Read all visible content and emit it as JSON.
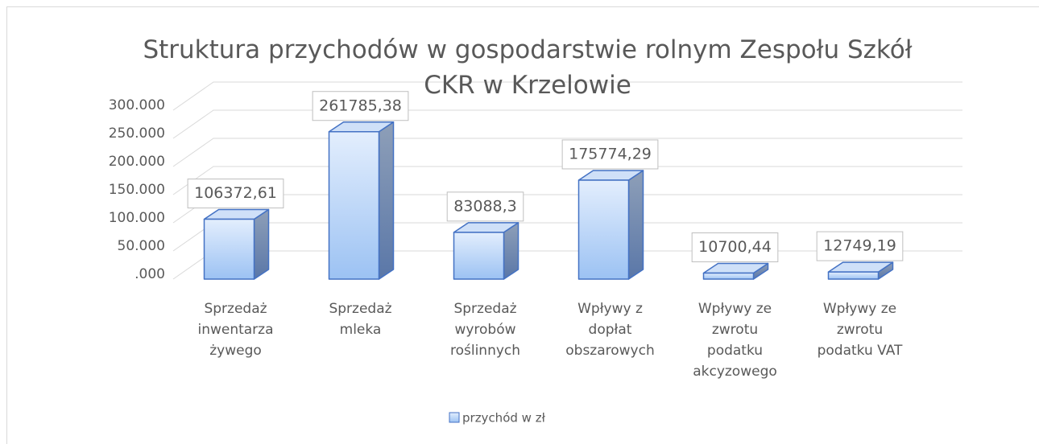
{
  "chart_data": {
    "type": "bar3d",
    "title": "Struktura przychodów w gospodarstwie rolnym Zespołu Szkół CKR w Krzelowie",
    "categories": [
      "Sprzedaż inwentarza żywego",
      "Sprzedaż mleka",
      "Sprzedaż wyrobów roślinnych",
      "Wpływy z dopłat obszarowych",
      "Wpływy ze zwrotu podatku akcyzowego",
      "Wpływy ze zwrotu podatku VAT"
    ],
    "series": [
      {
        "name": "przychód w zł",
        "color": "#4472c4",
        "values": [
          106372.61,
          261785.38,
          83088.3,
          175774.29,
          10700.44,
          12749.19
        ],
        "value_labels": [
          "106372,61",
          "261785,38",
          "83088,3",
          "175774,29",
          "10700,44",
          "12749,19"
        ]
      }
    ],
    "ylim": [
      0,
      300000
    ],
    "yticks": [
      {
        "value": 0,
        "label": ".000"
      },
      {
        "value": 50000,
        "label": "50.000"
      },
      {
        "value": 100000,
        "label": "100.000"
      },
      {
        "value": 150000,
        "label": "150.000"
      },
      {
        "value": 200000,
        "label": "200.000"
      },
      {
        "value": 250000,
        "label": "250.000"
      },
      {
        "value": 300000,
        "label": "300.000"
      }
    ],
    "grid": true,
    "legend": "bottom"
  }
}
